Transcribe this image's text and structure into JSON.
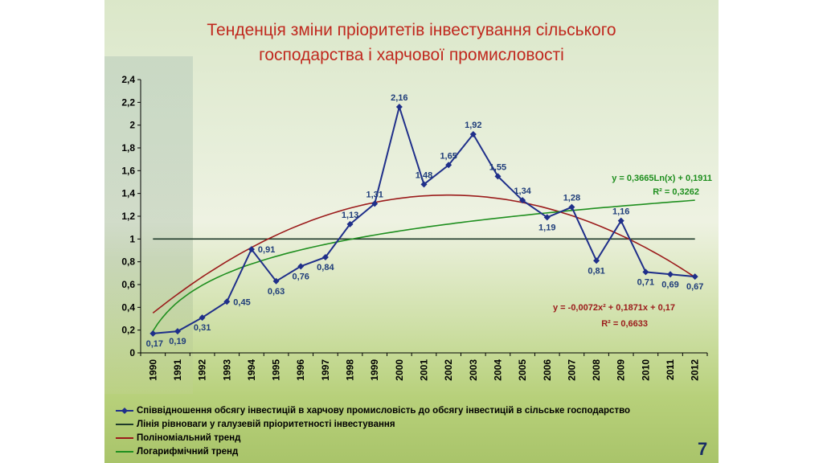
{
  "slide": {
    "title_line1": "Тенденція зміни пріоритетів інвестування сільського",
    "title_line2": "господарства і харчової промисловості",
    "page_number": "7"
  },
  "chart_data": {
    "type": "line",
    "title": "Тенденція зміни пріоритетів інвестування сільського господарства і харчової промисловості",
    "x": [
      1990,
      1991,
      1992,
      1993,
      1994,
      1995,
      1996,
      1997,
      1998,
      1999,
      2000,
      2001,
      2002,
      2003,
      2004,
      2005,
      2006,
      2007,
      2008,
      2009,
      2010,
      2011,
      2012
    ],
    "categories": [
      "1990",
      "1991",
      "1992",
      "1993",
      "1994",
      "1995",
      "1996",
      "1997",
      "1998",
      "1999",
      "2000",
      "2001",
      "2002",
      "2003",
      "2004",
      "2005",
      "2006",
      "2007",
      "2008",
      "2009",
      "2010",
      "2011",
      "2012"
    ],
    "ylim": [
      0,
      2.4
    ],
    "yticks": [
      "0",
      "0,2",
      "0,4",
      "0,6",
      "0,8",
      "1",
      "1,2",
      "1,4",
      "1,6",
      "1,8",
      "2",
      "2,2",
      "2,4"
    ],
    "grid": false,
    "legend_position": "bottom",
    "series": [
      {
        "name": "Співвідношення обсягу інвестицій в харчову промисловість до обсягу інвестицій в сільське господарство",
        "color": "#1f2f8a",
        "marker": "diamond",
        "values": [
          0.17,
          0.19,
          0.31,
          0.45,
          0.91,
          0.63,
          0.76,
          0.84,
          1.13,
          1.31,
          2.16,
          1.48,
          1.65,
          1.92,
          1.55,
          1.34,
          1.19,
          1.28,
          0.81,
          1.16,
          0.71,
          0.69,
          0.67
        ],
        "labels": [
          "0,17",
          "0,19",
          "0,31",
          "0,45",
          "0,91",
          "0,63",
          "0,76",
          "0,84",
          "1,13",
          "1,31",
          "2,16",
          "1,48",
          "1,65",
          "1,92",
          "1,55",
          "1,34",
          "1,19",
          "1,28",
          "0,81",
          "1,16",
          "0,71",
          "0,69",
          "0,67"
        ]
      },
      {
        "name": "Лінія рівноваги у галузевій пріоритетності інвестування",
        "color": "#1f3a2a",
        "constant": 1
      },
      {
        "name": "Поліноміальний тренд",
        "color": "#9b1b1b",
        "equation": "y = -0,0072x² + 0,1871x + 0,17",
        "r2": "R² = 0,6633",
        "coefficients": [
          -0.0072,
          0.1871,
          0.17
        ]
      },
      {
        "name": "Логарифмічний тренд",
        "color": "#1f8f1f",
        "equation": "y = 0,3665Ln(x) + 0,1911",
        "r2": "R² = 0,3262",
        "coefficients": [
          0.3665,
          0.1911
        ]
      }
    ]
  }
}
